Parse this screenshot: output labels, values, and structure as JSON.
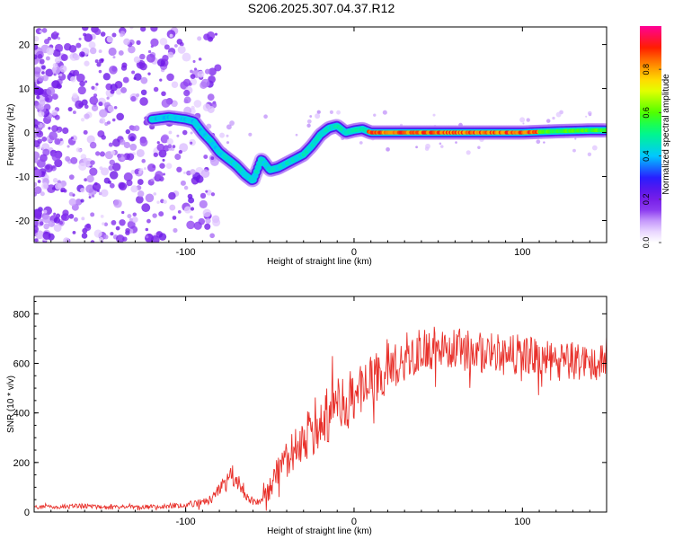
{
  "page": {
    "title": "S206.2025.307.04.37.R12"
  },
  "colors": {
    "snr_line": "#e8302a",
    "frame": "#000000",
    "point": "#7b2ff7"
  },
  "chart_data": [
    {
      "type": "heatmap",
      "title": "S206.2025.307.04.37.R12",
      "xlabel": "Height of straight line (km)",
      "ylabel": "Frequency (Hz)",
      "xlim": [
        -190,
        150
      ],
      "ylim": [
        -25,
        24
      ],
      "xticks": [
        -100,
        0,
        100
      ],
      "xtick_labels": [
        "-100",
        "0",
        "100"
      ],
      "yticks": [
        20,
        10,
        0,
        -10,
        -20
      ],
      "ytick_labels": [
        "20",
        "10",
        "0",
        "-10",
        "-20"
      ],
      "colorbar": {
        "label": "Normalized spectral amplitude",
        "range": [
          0,
          1
        ],
        "ticks": [
          0.0,
          0.2,
          0.4,
          0.6,
          0.8
        ],
        "tick_labels": [
          "0.0",
          "0.2",
          "0.4",
          "0.6",
          "0.8"
        ]
      },
      "ridge": {
        "x": [
          -120,
          -110,
          -100,
          -95,
          -90,
          -85,
          -80,
          -75,
          -70,
          -65,
          -60,
          -55,
          -50,
          -45,
          -40,
          -35,
          -30,
          -25,
          -20,
          -15,
          -10,
          -5,
          0,
          5,
          10,
          20,
          40,
          60,
          80,
          100,
          120,
          140,
          150
        ],
        "y": [
          3,
          3.5,
          3,
          2.5,
          0,
          -2,
          -4.5,
          -6,
          -7.5,
          -9.5,
          -11,
          -6,
          -8.5,
          -8,
          -7,
          -6,
          -5,
          -3,
          -0.5,
          1,
          1.5,
          0,
          0.5,
          0.8,
          0,
          0,
          0,
          0,
          0,
          0,
          0.3,
          0.5,
          0.5
        ]
      }
    },
    {
      "type": "line",
      "xlabel": "Height of straight line (km)",
      "ylabel": "SNR (10 * v/v)",
      "xlim": [
        -190,
        150
      ],
      "ylim": [
        0,
        870
      ],
      "xticks": [
        -100,
        0,
        100
      ],
      "xtick_labels": [
        "-100",
        "0",
        "100"
      ],
      "yticks": [
        0,
        200,
        400,
        600,
        800
      ],
      "ytick_labels": [
        "0",
        "200",
        "400",
        "600",
        "800"
      ],
      "series": [
        {
          "name": "SNR",
          "x": [
            -190,
            -180,
            -170,
            -160,
            -150,
            -140,
            -130,
            -120,
            -110,
            -100,
            -95,
            -90,
            -85,
            -80,
            -75,
            -72,
            -68,
            -65,
            -60,
            -55,
            -50,
            -45,
            -40,
            -35,
            -30,
            -25,
            -20,
            -15,
            -10,
            -5,
            0,
            5,
            10,
            15,
            20,
            30,
            40,
            50,
            60,
            70,
            80,
            90,
            100,
            110,
            120,
            130,
            140,
            150
          ],
          "values": [
            20,
            20,
            22,
            25,
            20,
            20,
            20,
            22,
            25,
            30,
            35,
            40,
            50,
            80,
            120,
            140,
            110,
            80,
            40,
            40,
            90,
            160,
            200,
            260,
            300,
            330,
            380,
            400,
            430,
            440,
            470,
            500,
            520,
            550,
            580,
            620,
            650,
            670,
            660,
            650,
            640,
            630,
            640,
            620,
            600,
            610,
            600,
            610
          ],
          "amplitude": [
            8,
            8,
            9,
            10,
            8,
            8,
            8,
            9,
            10,
            12,
            14,
            16,
            20,
            35,
            45,
            50,
            40,
            30,
            15,
            20,
            45,
            70,
            80,
            90,
            100,
            110,
            120,
            130,
            120,
            120,
            110,
            110,
            110,
            100,
            100,
            90,
            90,
            90,
            85,
            85,
            85,
            80,
            80,
            80,
            80,
            80,
            80,
            80
          ]
        }
      ]
    }
  ]
}
